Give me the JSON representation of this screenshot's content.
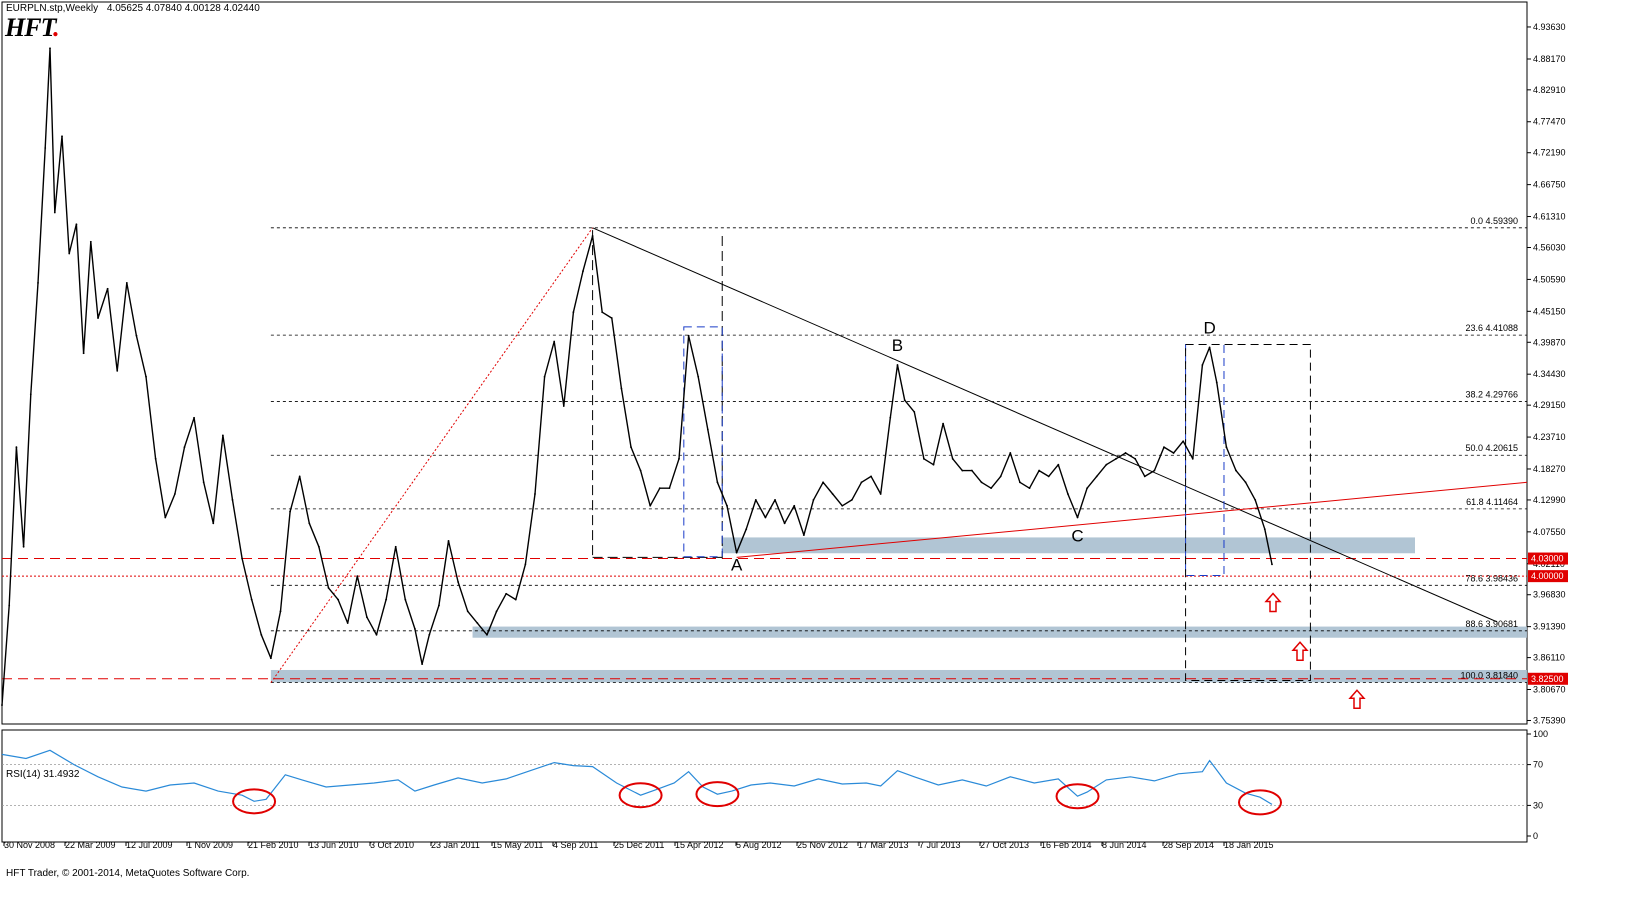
{
  "header": {
    "symbol": "EURPLN.stp,Weekly",
    "ohlc": "4.05625 4.07840 4.00128 4.02440",
    "logo_text": "HFT",
    "logo_dot": "."
  },
  "rsi_panel": {
    "label": "RSI(14) 31.4932",
    "levels": [
      100,
      70,
      30,
      0
    ]
  },
  "copyright": "HFT Trader, © 2001-2014, MetaQuotes Software Corp.",
  "colors": {
    "price_line": "#000000",
    "resistance_red": "#e00000",
    "zone_fill": "#a9bfcf",
    "rsi_line": "#2a8ad8",
    "fib_line": "#000000",
    "box_blue": "#1a3cc8"
  },
  "chart_data": {
    "type": "line",
    "price_axis": {
      "ylim": [
        3.7479,
        4.9584
      ],
      "ticks": [
        "4.93630",
        "4.88170",
        "4.82910",
        "4.77470",
        "4.72190",
        "4.66750",
        "4.61310",
        "4.56030",
        "4.50590",
        "4.45150",
        "4.39870",
        "4.34430",
        "4.29150",
        "4.23710",
        "4.18270",
        "4.12990",
        "4.07550",
        "4.02110",
        "3.96830",
        "3.91390",
        "3.86110",
        "3.80670",
        "3.75390"
      ]
    },
    "x_axis": {
      "tick_labels": [
        "30 Nov 2008",
        "22 Mar 2009",
        "12 Jul 2009",
        "1 Nov 2009",
        "21 Feb 2010",
        "13 Jun 2010",
        "3 Oct 2010",
        "23 Jan 2011",
        "15 May 2011",
        "4 Sep 2011",
        "25 Dec 2011",
        "15 Apr 2012",
        "5 Aug 2012",
        "25 Nov 2012",
        "17 Mar 2013",
        "7 Jul 2013",
        "27 Oct 2013",
        "16 Feb 2014",
        "8 Jun 2014",
        "28 Sep 2014",
        "18 Jan 2015"
      ]
    },
    "price_series": [
      {
        "t": 0,
        "p": 3.78
      },
      {
        "t": 3,
        "p": 3.95
      },
      {
        "t": 6,
        "p": 4.22
      },
      {
        "t": 9,
        "p": 4.05
      },
      {
        "t": 12,
        "p": 4.31
      },
      {
        "t": 15,
        "p": 4.5
      },
      {
        "t": 18,
        "p": 4.73
      },
      {
        "t": 20,
        "p": 4.9
      },
      {
        "t": 22,
        "p": 4.62
      },
      {
        "t": 25,
        "p": 4.75
      },
      {
        "t": 28,
        "p": 4.55
      },
      {
        "t": 31,
        "p": 4.6
      },
      {
        "t": 34,
        "p": 4.38
      },
      {
        "t": 37,
        "p": 4.57
      },
      {
        "t": 40,
        "p": 4.44
      },
      {
        "t": 44,
        "p": 4.49
      },
      {
        "t": 48,
        "p": 4.35
      },
      {
        "t": 52,
        "p": 4.5
      },
      {
        "t": 56,
        "p": 4.41
      },
      {
        "t": 60,
        "p": 4.34
      },
      {
        "t": 64,
        "p": 4.2
      },
      {
        "t": 68,
        "p": 4.1
      },
      {
        "t": 72,
        "p": 4.14
      },
      {
        "t": 76,
        "p": 4.22
      },
      {
        "t": 80,
        "p": 4.27
      },
      {
        "t": 84,
        "p": 4.16
      },
      {
        "t": 88,
        "p": 4.09
      },
      {
        "t": 92,
        "p": 4.24
      },
      {
        "t": 96,
        "p": 4.13
      },
      {
        "t": 100,
        "p": 4.03
      },
      {
        "t": 104,
        "p": 3.96
      },
      {
        "t": 108,
        "p": 3.9
      },
      {
        "t": 112,
        "p": 3.86
      },
      {
        "t": 116,
        "p": 3.94
      },
      {
        "t": 120,
        "p": 4.11
      },
      {
        "t": 124,
        "p": 4.17
      },
      {
        "t": 128,
        "p": 4.09
      },
      {
        "t": 132,
        "p": 4.05
      },
      {
        "t": 136,
        "p": 3.98
      },
      {
        "t": 140,
        "p": 3.96
      },
      {
        "t": 144,
        "p": 3.92
      },
      {
        "t": 148,
        "p": 4.0
      },
      {
        "t": 152,
        "p": 3.93
      },
      {
        "t": 156,
        "p": 3.9
      },
      {
        "t": 160,
        "p": 3.96
      },
      {
        "t": 164,
        "p": 4.05
      },
      {
        "t": 168,
        "p": 3.96
      },
      {
        "t": 172,
        "p": 3.91
      },
      {
        "t": 175,
        "p": 3.85
      },
      {
        "t": 178,
        "p": 3.9
      },
      {
        "t": 182,
        "p": 3.95
      },
      {
        "t": 186,
        "p": 4.06
      },
      {
        "t": 190,
        "p": 3.99
      },
      {
        "t": 194,
        "p": 3.94
      },
      {
        "t": 198,
        "p": 3.92
      },
      {
        "t": 202,
        "p": 3.9
      },
      {
        "t": 206,
        "p": 3.94
      },
      {
        "t": 210,
        "p": 3.97
      },
      {
        "t": 214,
        "p": 3.96
      },
      {
        "t": 218,
        "p": 4.02
      },
      {
        "t": 222,
        "p": 4.14
      },
      {
        "t": 226,
        "p": 4.34
      },
      {
        "t": 230,
        "p": 4.4
      },
      {
        "t": 234,
        "p": 4.29
      },
      {
        "t": 238,
        "p": 4.45
      },
      {
        "t": 242,
        "p": 4.52
      },
      {
        "t": 246,
        "p": 4.58
      },
      {
        "t": 250,
        "p": 4.45
      },
      {
        "t": 254,
        "p": 4.44
      },
      {
        "t": 258,
        "p": 4.32
      },
      {
        "t": 262,
        "p": 4.22
      },
      {
        "t": 266,
        "p": 4.18
      },
      {
        "t": 270,
        "p": 4.12
      },
      {
        "t": 274,
        "p": 4.15
      },
      {
        "t": 278,
        "p": 4.15
      },
      {
        "t": 282,
        "p": 4.2
      },
      {
        "t": 286,
        "p": 4.41
      },
      {
        "t": 290,
        "p": 4.34
      },
      {
        "t": 294,
        "p": 4.25
      },
      {
        "t": 298,
        "p": 4.16
      },
      {
        "t": 302,
        "p": 4.12
      },
      {
        "t": 306,
        "p": 4.04
      },
      {
        "t": 310,
        "p": 4.08
      },
      {
        "t": 314,
        "p": 4.13
      },
      {
        "t": 318,
        "p": 4.1
      },
      {
        "t": 322,
        "p": 4.13
      },
      {
        "t": 326,
        "p": 4.09
      },
      {
        "t": 330,
        "p": 4.12
      },
      {
        "t": 334,
        "p": 4.07
      },
      {
        "t": 338,
        "p": 4.13
      },
      {
        "t": 342,
        "p": 4.16
      },
      {
        "t": 346,
        "p": 4.14
      },
      {
        "t": 350,
        "p": 4.12
      },
      {
        "t": 354,
        "p": 4.13
      },
      {
        "t": 358,
        "p": 4.16
      },
      {
        "t": 362,
        "p": 4.17
      },
      {
        "t": 366,
        "p": 4.14
      },
      {
        "t": 370,
        "p": 4.27
      },
      {
        "t": 373,
        "p": 4.36
      },
      {
        "t": 376,
        "p": 4.3
      },
      {
        "t": 380,
        "p": 4.28
      },
      {
        "t": 384,
        "p": 4.2
      },
      {
        "t": 388,
        "p": 4.19
      },
      {
        "t": 392,
        "p": 4.26
      },
      {
        "t": 396,
        "p": 4.2
      },
      {
        "t": 400,
        "p": 4.18
      },
      {
        "t": 404,
        "p": 4.18
      },
      {
        "t": 408,
        "p": 4.16
      },
      {
        "t": 412,
        "p": 4.15
      },
      {
        "t": 416,
        "p": 4.17
      },
      {
        "t": 420,
        "p": 4.21
      },
      {
        "t": 424,
        "p": 4.16
      },
      {
        "t": 428,
        "p": 4.15
      },
      {
        "t": 432,
        "p": 4.18
      },
      {
        "t": 436,
        "p": 4.17
      },
      {
        "t": 440,
        "p": 4.19
      },
      {
        "t": 444,
        "p": 4.14
      },
      {
        "t": 448,
        "p": 4.1
      },
      {
        "t": 452,
        "p": 4.15
      },
      {
        "t": 456,
        "p": 4.17
      },
      {
        "t": 460,
        "p": 4.19
      },
      {
        "t": 464,
        "p": 4.2
      },
      {
        "t": 468,
        "p": 4.21
      },
      {
        "t": 472,
        "p": 4.2
      },
      {
        "t": 476,
        "p": 4.17
      },
      {
        "t": 480,
        "p": 4.18
      },
      {
        "t": 484,
        "p": 4.22
      },
      {
        "t": 488,
        "p": 4.21
      },
      {
        "t": 492,
        "p": 4.23
      },
      {
        "t": 496,
        "p": 4.2
      },
      {
        "t": 500,
        "p": 4.36
      },
      {
        "t": 503,
        "p": 4.39
      },
      {
        "t": 506,
        "p": 4.33
      },
      {
        "t": 510,
        "p": 4.22
      },
      {
        "t": 514,
        "p": 4.18
      },
      {
        "t": 518,
        "p": 4.16
      },
      {
        "t": 522,
        "p": 4.13
      },
      {
        "t": 526,
        "p": 4.08
      },
      {
        "t": 529,
        "p": 4.02
      }
    ],
    "rsi_series": [
      {
        "t": 0,
        "v": 80
      },
      {
        "t": 10,
        "v": 76
      },
      {
        "t": 20,
        "v": 84
      },
      {
        "t": 30,
        "v": 70
      },
      {
        "t": 40,
        "v": 58
      },
      {
        "t": 50,
        "v": 48
      },
      {
        "t": 60,
        "v": 44
      },
      {
        "t": 70,
        "v": 50
      },
      {
        "t": 80,
        "v": 52
      },
      {
        "t": 90,
        "v": 44
      },
      {
        "t": 100,
        "v": 40
      },
      {
        "t": 105,
        "v": 34
      },
      {
        "t": 110,
        "v": 36
      },
      {
        "t": 118,
        "v": 60
      },
      {
        "t": 125,
        "v": 55
      },
      {
        "t": 135,
        "v": 48
      },
      {
        "t": 145,
        "v": 50
      },
      {
        "t": 155,
        "v": 52
      },
      {
        "t": 165,
        "v": 55
      },
      {
        "t": 172,
        "v": 44
      },
      {
        "t": 180,
        "v": 50
      },
      {
        "t": 190,
        "v": 57
      },
      {
        "t": 200,
        "v": 52
      },
      {
        "t": 210,
        "v": 56
      },
      {
        "t": 220,
        "v": 64
      },
      {
        "t": 230,
        "v": 72
      },
      {
        "t": 238,
        "v": 69
      },
      {
        "t": 246,
        "v": 68
      },
      {
        "t": 256,
        "v": 52
      },
      {
        "t": 266,
        "v": 40
      },
      {
        "t": 272,
        "v": 45
      },
      {
        "t": 280,
        "v": 52
      },
      {
        "t": 286,
        "v": 63
      },
      {
        "t": 292,
        "v": 48
      },
      {
        "t": 298,
        "v": 41
      },
      {
        "t": 304,
        "v": 44
      },
      {
        "t": 312,
        "v": 50
      },
      {
        "t": 320,
        "v": 52
      },
      {
        "t": 330,
        "v": 49
      },
      {
        "t": 340,
        "v": 56
      },
      {
        "t": 350,
        "v": 51
      },
      {
        "t": 360,
        "v": 52
      },
      {
        "t": 366,
        "v": 49
      },
      {
        "t": 373,
        "v": 64
      },
      {
        "t": 380,
        "v": 58
      },
      {
        "t": 390,
        "v": 50
      },
      {
        "t": 400,
        "v": 55
      },
      {
        "t": 410,
        "v": 49
      },
      {
        "t": 420,
        "v": 58
      },
      {
        "t": 430,
        "v": 52
      },
      {
        "t": 440,
        "v": 56
      },
      {
        "t": 448,
        "v": 39
      },
      {
        "t": 452,
        "v": 43
      },
      {
        "t": 460,
        "v": 55
      },
      {
        "t": 470,
        "v": 58
      },
      {
        "t": 480,
        "v": 54
      },
      {
        "t": 490,
        "v": 61
      },
      {
        "t": 500,
        "v": 63
      },
      {
        "t": 503,
        "v": 74
      },
      {
        "t": 510,
        "v": 52
      },
      {
        "t": 518,
        "v": 42
      },
      {
        "t": 524,
        "v": 38
      },
      {
        "t": 529,
        "v": 31
      }
    ],
    "fibonacci": [
      {
        "label": "0.0",
        "value": "4.59390"
      },
      {
        "label": "23.6",
        "value": "4.41088"
      },
      {
        "label": "38.2",
        "value": "4.29766"
      },
      {
        "label": "50.0",
        "value": "4.20615"
      },
      {
        "label": "61.8",
        "value": "4.11464"
      },
      {
        "label": "78.6",
        "value": "3.98436"
      },
      {
        "label": "88.6",
        "value": "3.90681"
      },
      {
        "label": "100.0",
        "value": "3.81840"
      }
    ],
    "level_markers": [
      {
        "value": "4.03000"
      },
      {
        "value": "4.00000"
      },
      {
        "value": "3.82500"
      }
    ],
    "pattern_points": [
      {
        "label": "A",
        "t": 306,
        "p": 4.04
      },
      {
        "label": "B",
        "t": 373,
        "p": 4.37
      },
      {
        "label": "C",
        "t": 448,
        "p": 4.09
      },
      {
        "label": "D",
        "t": 503,
        "p": 4.4
      }
    ]
  }
}
